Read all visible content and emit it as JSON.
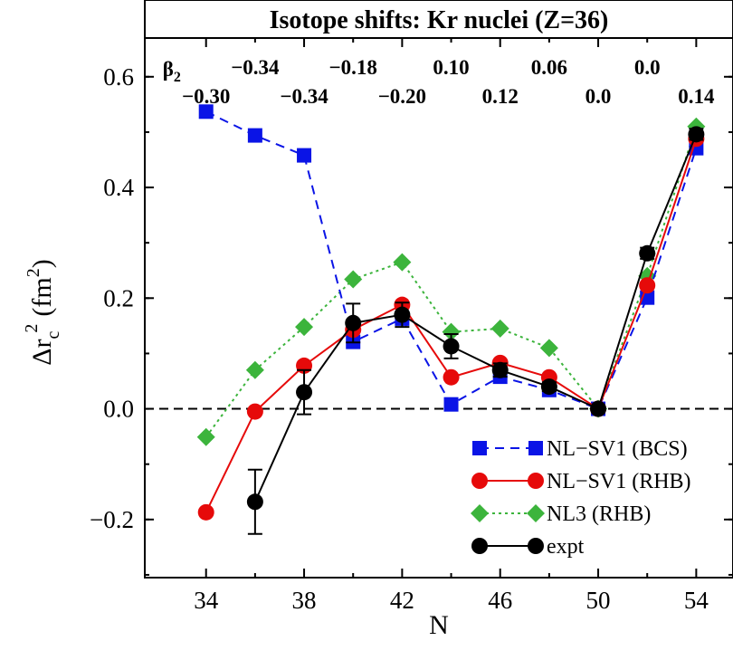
{
  "chart_data": {
    "type": "line",
    "title": "Isotope shifts: Kr nuclei (Z=36)",
    "xlabel": "N",
    "ylabel": "Δr",
    "ylabel_sub": "c",
    "ylabel_sup": "2",
    "ylabel_unit": "(fm",
    "ylabel_unit_sup": "2",
    "ylabel_unit_close": ")",
    "xlim": [
      31.5,
      55.5
    ],
    "ylim": [
      -0.305,
      0.67
    ],
    "x_ticks": [
      34,
      38,
      42,
      46,
      50,
      54
    ],
    "x_tick_labels": [
      "34",
      "38",
      "42",
      "46",
      "50",
      "54"
    ],
    "y_ticks": [
      -0.2,
      0.0,
      0.2,
      0.4,
      0.6
    ],
    "y_tick_labels": [
      "−0.2",
      "0.0",
      "0.2",
      "0.4",
      "0.6"
    ],
    "reference_line": 0.0,
    "beta_label": "β",
    "beta_label_sub": "2",
    "beta_upper": [
      {
        "x": 36,
        "text": "−0.34"
      },
      {
        "x": 40,
        "text": "−0.18"
      },
      {
        "x": 44,
        "text": "0.10"
      },
      {
        "x": 48,
        "text": "0.06"
      },
      {
        "x": 52,
        "text": "0.0"
      }
    ],
    "beta_lower": [
      {
        "x": 34,
        "text": "−0.30"
      },
      {
        "x": 38,
        "text": "−0.34"
      },
      {
        "x": 42,
        "text": "−0.20"
      },
      {
        "x": 46,
        "text": "0.12"
      },
      {
        "x": 50,
        "text": "0.0"
      },
      {
        "x": 54,
        "text": "0.14"
      }
    ],
    "legend_position": "bottom-right",
    "series": [
      {
        "name": "NL−SV1 (BCS)",
        "color": "#0a14e6",
        "marker": "square",
        "line": "dashed",
        "x": [
          34,
          36,
          38,
          40,
          42,
          44,
          46,
          48,
          50,
          52,
          54
        ],
        "y": [
          0.537,
          0.494,
          0.458,
          0.121,
          0.163,
          0.008,
          0.058,
          0.034,
          0.0,
          0.201,
          0.471
        ]
      },
      {
        "name": "NL−SV1 (RHB)",
        "color": "#e60a0a",
        "marker": "circle",
        "line": "solid",
        "x": [
          34,
          36,
          38,
          40,
          42,
          44,
          46,
          48,
          50,
          52,
          54
        ],
        "y": [
          -0.187,
          -0.005,
          0.078,
          0.143,
          0.188,
          0.057,
          0.083,
          0.057,
          0.0,
          0.223,
          0.488
        ]
      },
      {
        "name": "NL3 (RHB)",
        "color": "#3cb43c",
        "marker": "diamond",
        "line": "dotted",
        "x": [
          34,
          36,
          38,
          40,
          42,
          44,
          46,
          48,
          50,
          52,
          54
        ],
        "y": [
          -0.051,
          0.07,
          0.148,
          0.234,
          0.265,
          0.139,
          0.145,
          0.11,
          0.0,
          0.24,
          0.51
        ]
      },
      {
        "name": "expt",
        "color": "#000000",
        "marker": "circle",
        "line": "solid",
        "x": [
          36,
          38,
          40,
          42,
          44,
          46,
          48,
          50,
          52,
          54
        ],
        "y": [
          -0.168,
          0.03,
          0.155,
          0.17,
          0.113,
          0.07,
          0.04,
          0.0,
          0.281,
          0.496
        ],
        "err": [
          0.058,
          0.04,
          0.035,
          0.022,
          0.022,
          0.012,
          0.008,
          0.0,
          0.01,
          0.01
        ]
      }
    ]
  }
}
